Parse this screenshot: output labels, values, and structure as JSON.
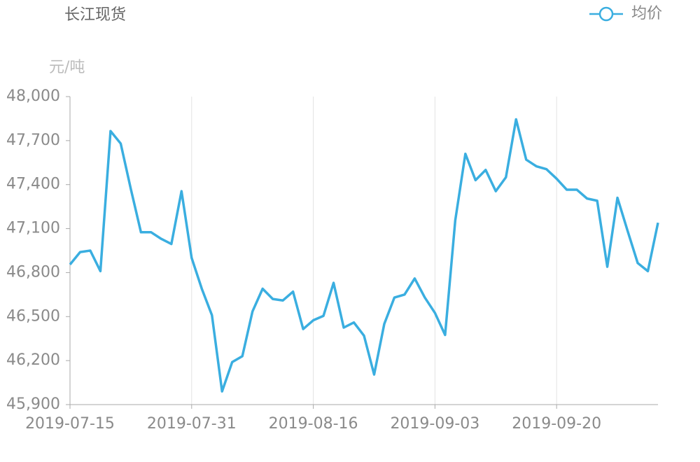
{
  "chart_data": {
    "type": "line",
    "title": "长江现货",
    "y_label": "元/吨",
    "categories": [
      "2019-07-15",
      null,
      null,
      null,
      null,
      null,
      null,
      null,
      null,
      null,
      null,
      null,
      "2019-07-31",
      null,
      null,
      null,
      null,
      null,
      null,
      null,
      null,
      null,
      null,
      null,
      "2019-08-16",
      null,
      null,
      null,
      null,
      null,
      null,
      null,
      null,
      null,
      null,
      null,
      "2019-09-03",
      null,
      null,
      null,
      null,
      null,
      null,
      null,
      null,
      null,
      null,
      null,
      "2019-09-20",
      null,
      null,
      null,
      null,
      null,
      null,
      null,
      null,
      null,
      null
    ],
    "series": [
      {
        "name": "均价",
        "color": "#3aaee0",
        "values": [
          46855,
          46940,
          46950,
          46810,
          47765,
          47680,
          47370,
          47075,
          47075,
          47030,
          46995,
          47355,
          46900,
          46690,
          46510,
          45990,
          46190,
          46230,
          46535,
          46690,
          46620,
          46610,
          46670,
          46415,
          46475,
          46505,
          46730,
          46425,
          46460,
          46370,
          46105,
          46450,
          46630,
          46650,
          46760,
          46630,
          46525,
          46375,
          47155,
          47610,
          47430,
          47500,
          47355,
          47450,
          47845,
          47570,
          47525,
          47505,
          47440,
          47365,
          47365,
          47305,
          47290,
          46840,
          47310,
          47085,
          46865,
          46810,
          47140
        ]
      }
    ],
    "ylim": [
      45900,
      48000
    ],
    "yticks": [
      {
        "value": 45900,
        "label": "45,900"
      },
      {
        "value": 46200,
        "label": "46,200"
      },
      {
        "value": 46500,
        "label": "46,500"
      },
      {
        "value": 46800,
        "label": "46,800"
      },
      {
        "value": 47100,
        "label": "47,100"
      },
      {
        "value": 47400,
        "label": "47,400"
      },
      {
        "value": 47700,
        "label": "47,700"
      },
      {
        "value": 48000,
        "label": "48,000"
      }
    ],
    "grid": true,
    "legend": "top-right"
  }
}
